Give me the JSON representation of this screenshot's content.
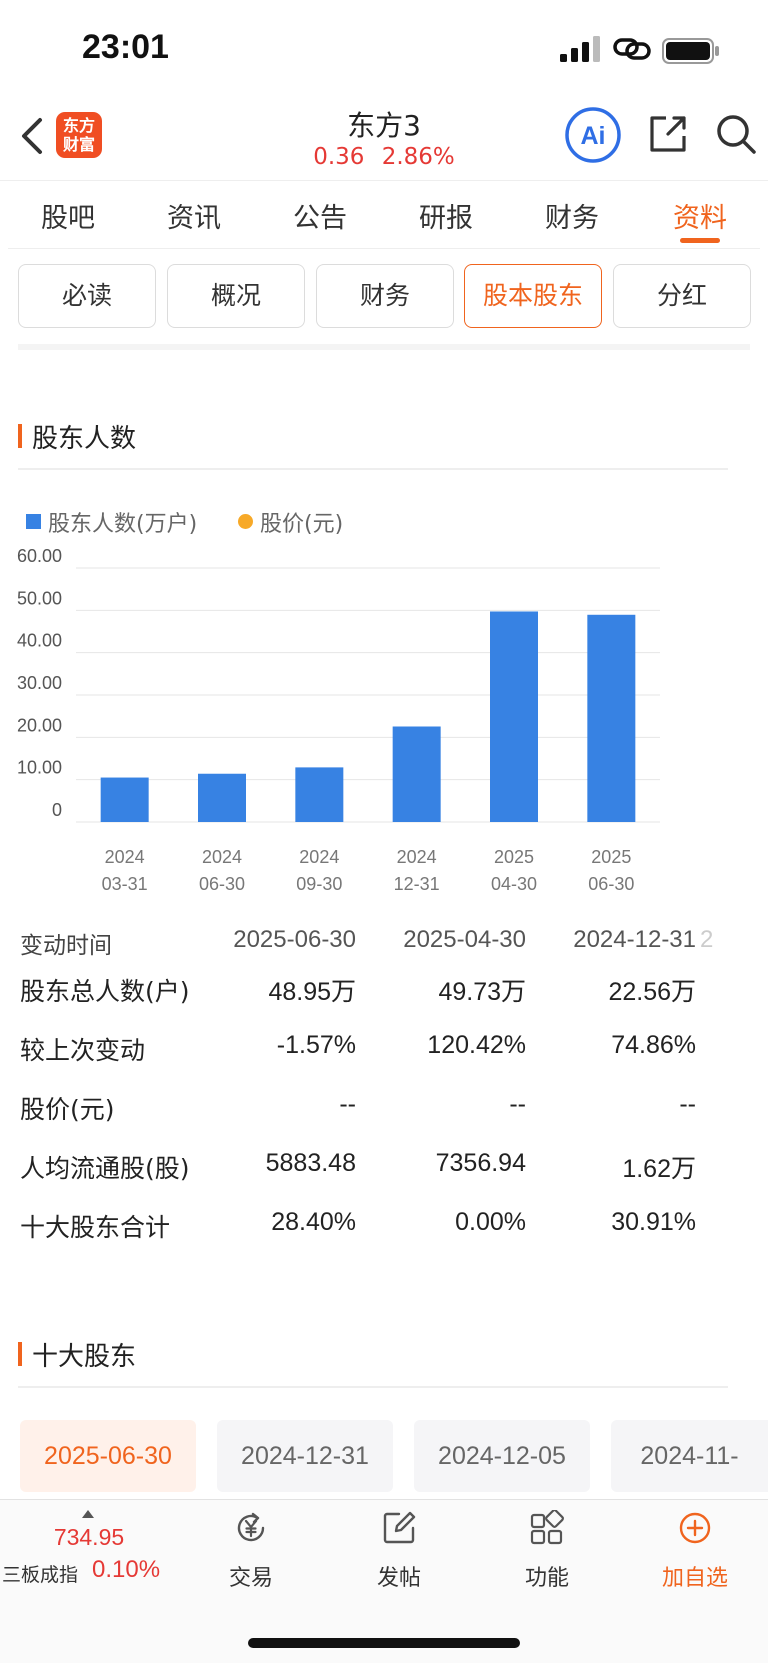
{
  "status_bar": {
    "time": "23:01"
  },
  "header": {
    "logo_line1": "东方",
    "logo_line2": "财富",
    "stock_name": "东方3",
    "price": "0.36",
    "change_pct": "2.86%",
    "ai_label": "Ai"
  },
  "tabs": [
    {
      "label": "股吧"
    },
    {
      "label": "资讯"
    },
    {
      "label": "公告"
    },
    {
      "label": "研报"
    },
    {
      "label": "财务"
    },
    {
      "label": "资料",
      "active": true
    }
  ],
  "subtabs": [
    {
      "label": "必读"
    },
    {
      "label": "概况"
    },
    {
      "label": "财务"
    },
    {
      "label": "股本股东",
      "active": true
    },
    {
      "label": "分红"
    }
  ],
  "sections": {
    "holders_title": "股东人数",
    "top10_title": "十大股东"
  },
  "legend": {
    "bar_label": "股东人数(万户)",
    "dot_label": "股价(元)"
  },
  "chart_data": {
    "type": "bar",
    "title": "",
    "categories": [
      "2024\n03-31",
      "2024\n06-30",
      "2024\n09-30",
      "2024\n12-31",
      "2025\n04-30",
      "2025\n06-30"
    ],
    "category_lines": [
      [
        "2024",
        "03-31"
      ],
      [
        "2024",
        "06-30"
      ],
      [
        "2024",
        "09-30"
      ],
      [
        "2024",
        "12-31"
      ],
      [
        "2025",
        "04-30"
      ],
      [
        "2025",
        "06-30"
      ]
    ],
    "series": [
      {
        "name": "股东人数(万户)",
        "values": [
          10.5,
          11.4,
          12.9,
          22.56,
          49.73,
          48.95
        ]
      }
    ],
    "secondary_series": [
      {
        "name": "股价(元)",
        "values": []
      }
    ],
    "y_ticks": [
      "0",
      "10.00",
      "20.00",
      "30.00",
      "40.00",
      "50.00",
      "60.00"
    ],
    "ylim": [
      0,
      60
    ],
    "grid": true,
    "legend_position": "top-left",
    "colors": {
      "bar": "#3782e3",
      "price": "#f7a928"
    }
  },
  "table": {
    "header": {
      "label": "变动时间",
      "cols": [
        "2025-06-30",
        "2025-04-30",
        "2024-12-31"
      ],
      "clipped": "2"
    },
    "rows": [
      {
        "label": "股东总人数(户)",
        "cols": [
          "48.95万",
          "49.73万",
          "22.56万"
        ]
      },
      {
        "label": "较上次变动",
        "cols": [
          "-1.57%",
          "120.42%",
          "74.86%"
        ]
      },
      {
        "label": "股价(元)",
        "cols": [
          "--",
          "--",
          "--"
        ]
      },
      {
        "label": "人均流通股(股)",
        "cols": [
          "5883.48",
          "7356.94",
          "1.62万"
        ]
      },
      {
        "label": "十大股东合计",
        "cols": [
          "28.40%",
          "0.00%",
          "30.91%"
        ]
      }
    ]
  },
  "date_tabs": [
    {
      "label": "2025-06-30",
      "active": true
    },
    {
      "label": "2024-12-31"
    },
    {
      "label": "2024-12-05"
    },
    {
      "label": "2024-11-"
    }
  ],
  "bottom_bar": {
    "index_value": "734.95",
    "index_name": "三板成指",
    "index_pct": "0.10%",
    "items": [
      {
        "label": "交易",
        "icon": "yen-exchange-icon"
      },
      {
        "label": "发帖",
        "icon": "edit-icon"
      },
      {
        "label": "功能",
        "icon": "grid-icon"
      },
      {
        "label": "加自选",
        "icon": "add-circle-icon"
      }
    ]
  },
  "colors": {
    "accent": "#f0641e",
    "up": "#e53935",
    "bar": "#3782e3"
  }
}
